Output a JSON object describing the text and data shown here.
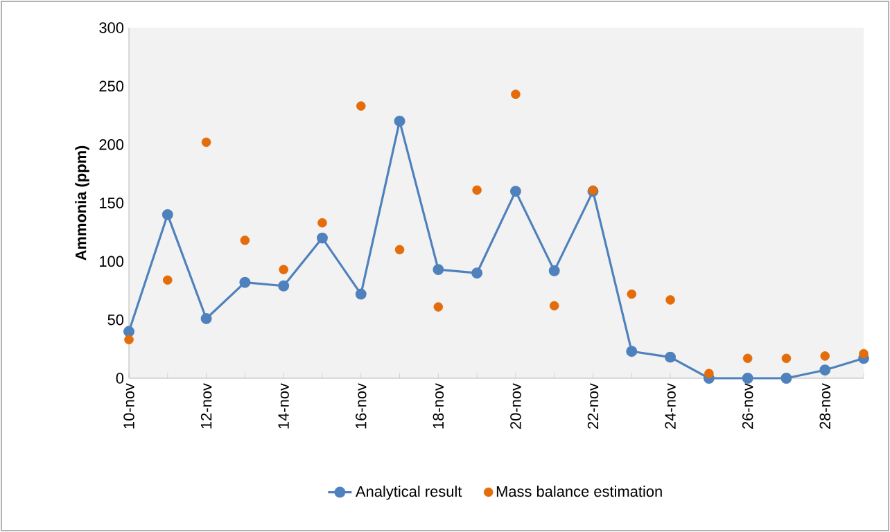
{
  "chart_data": {
    "type": "line",
    "ylabel": "Ammonia (ppm)",
    "categories": [
      "10-nov",
      null,
      "12-nov",
      null,
      "14-nov",
      null,
      "16-nov",
      null,
      "18-nov",
      null,
      "20-nov",
      null,
      "22-nov",
      null,
      "24-nov",
      null,
      "26-nov",
      null,
      "28-nov",
      null
    ],
    "series": [
      {
        "name": "Analytical result",
        "color": "#4f81bd",
        "values": [
          40,
          140,
          51,
          82,
          79,
          120,
          72,
          220,
          93,
          90,
          160,
          92,
          160,
          23,
          18,
          0,
          0,
          0,
          7,
          17
        ]
      },
      {
        "name": "Mass balance estimation",
        "color": "#e46c0a",
        "type": "scatter",
        "values": [
          33,
          84,
          202,
          118,
          93,
          133,
          233,
          110,
          61,
          161,
          243,
          62,
          161,
          72,
          67,
          4,
          17,
          17,
          19,
          21
        ]
      }
    ],
    "ylim": [
      0,
      300
    ],
    "yticks": [
      0,
      50,
      100,
      150,
      200,
      250,
      300
    ],
    "marker": "circle",
    "legend": "bottom"
  }
}
